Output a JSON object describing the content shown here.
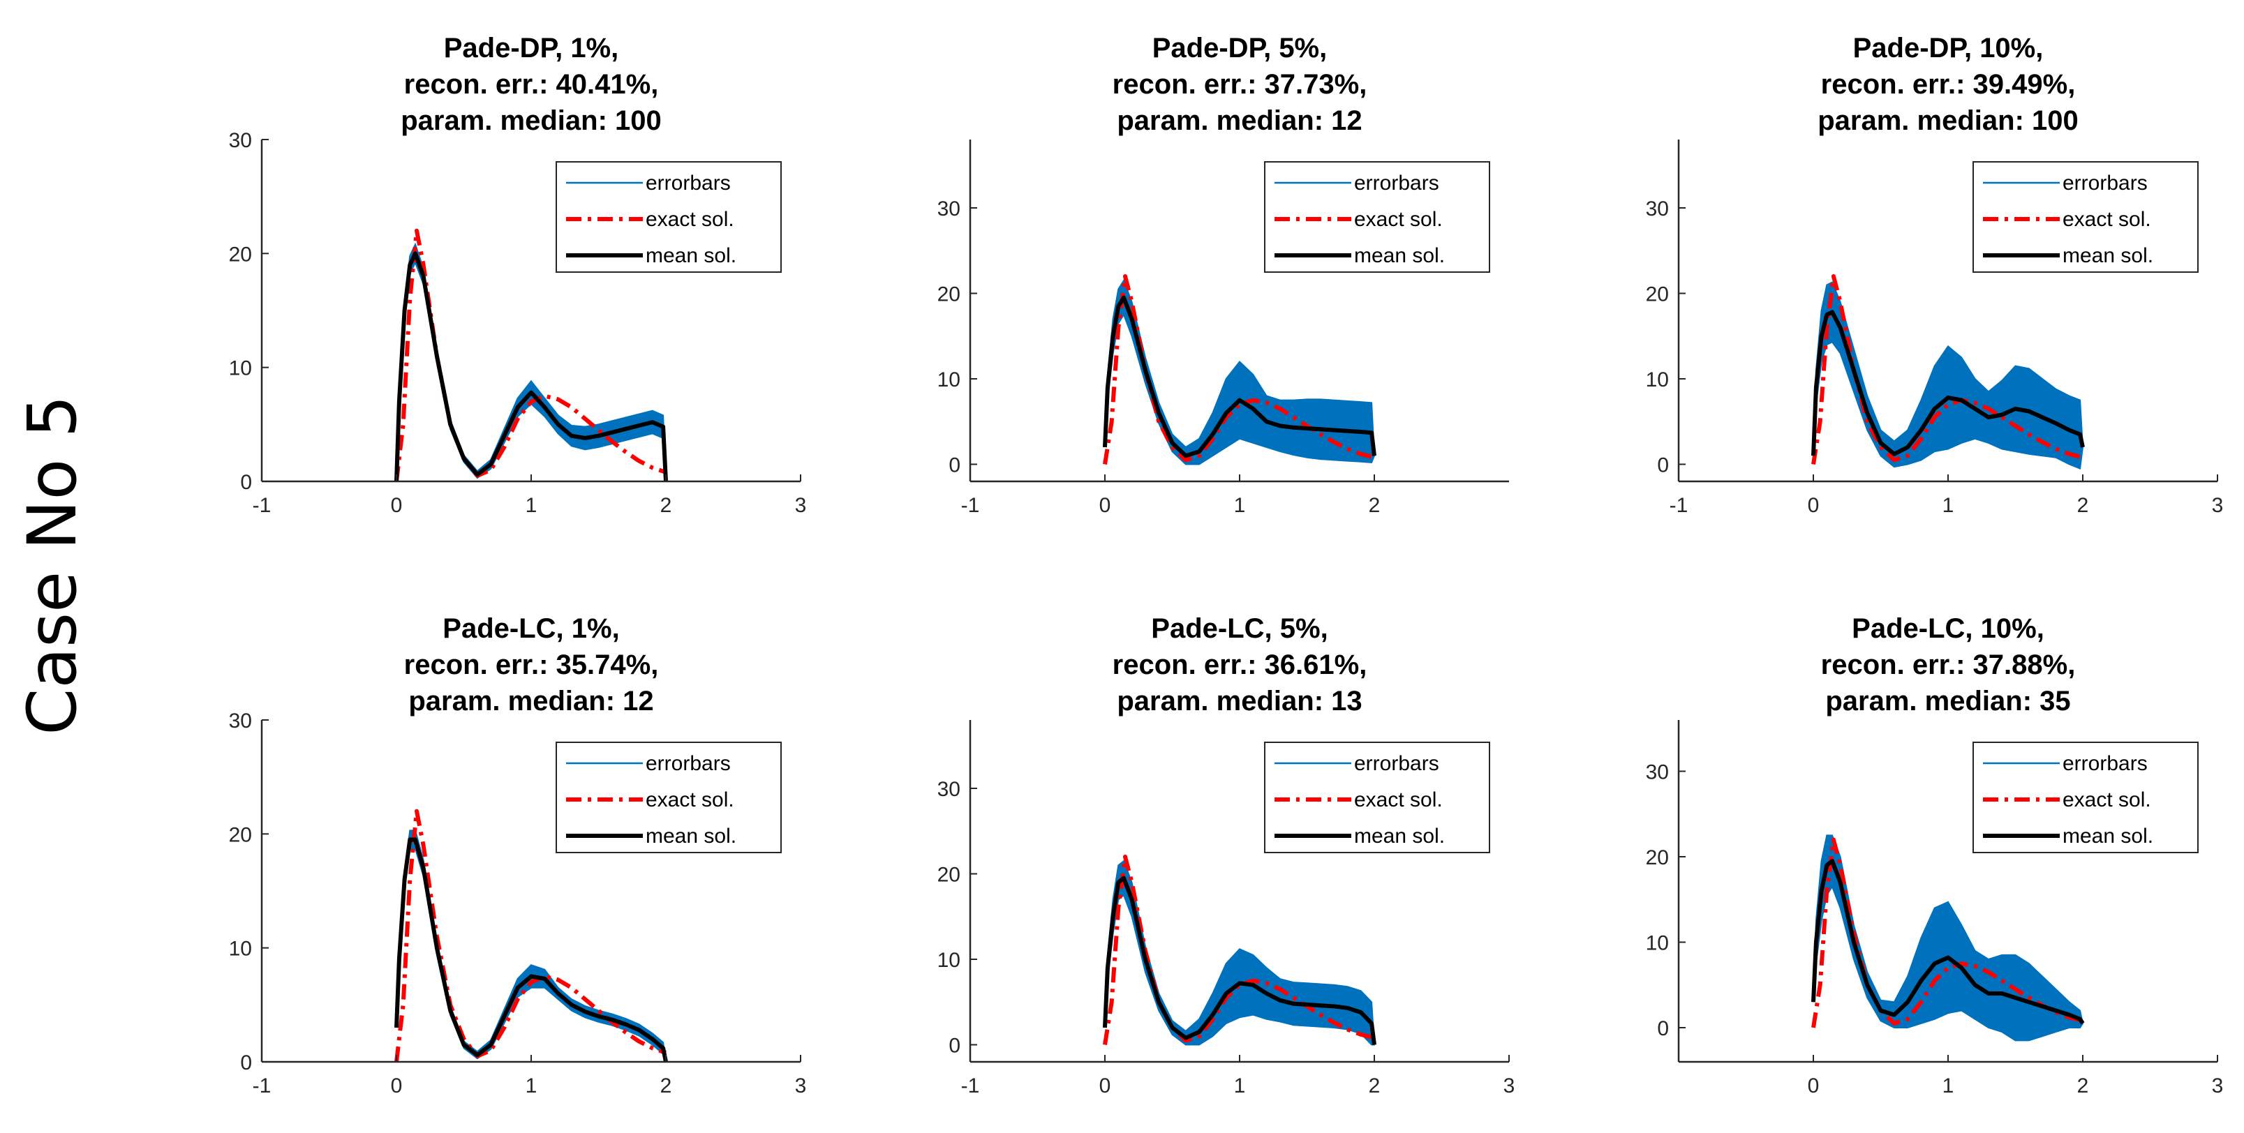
{
  "figure_label": "Case No 5",
  "colors": {
    "errorbars": "#0072bd",
    "exact": "#ff0000",
    "mean": "#000000",
    "axis": "#262626"
  },
  "chart_data": [
    {
      "type": "line",
      "title": [
        "Pade-DP, 1%,",
        "recon. err.: 40.41%,",
        "param. median: 100"
      ],
      "xlim": [
        -1,
        3
      ],
      "ylim": [
        0,
        30
      ],
      "xticks": [
        -1,
        0,
        1,
        2,
        3
      ],
      "yticks": [
        0,
        10,
        20,
        30
      ],
      "legend": {
        "position": "top-right",
        "entries": [
          "errorbars",
          "exact sol.",
          "mean sol."
        ]
      },
      "series": {
        "mean": {
          "x": [
            0,
            0.02,
            0.06,
            0.1,
            0.14,
            0.2,
            0.3,
            0.4,
            0.5,
            0.6,
            0.7,
            0.8,
            0.9,
            1.0,
            1.1,
            1.2,
            1.3,
            1.4,
            1.5,
            1.6,
            1.7,
            1.8,
            1.9,
            1.98,
            2.0
          ],
          "y": [
            0,
            7,
            15,
            19,
            20,
            18,
            11,
            5,
            2,
            0.6,
            1.5,
            4,
            6.5,
            7.8,
            6.5,
            5.0,
            4.0,
            3.8,
            4.0,
            4.3,
            4.6,
            4.9,
            5.2,
            4.8,
            0
          ]
        },
        "error_half_width": [
          0,
          0.6,
          0.8,
          0.8,
          0.8,
          0.7,
          0.6,
          0.4,
          0.3,
          0.3,
          0.4,
          0.6,
          0.8,
          1.0,
          0.8,
          0.8,
          0.9,
          1.0,
          1.0,
          1.0,
          1.0,
          1.0,
          1.0,
          1.0,
          0
        ],
        "exact": {
          "x": [
            0,
            0.05,
            0.1,
            0.15,
            0.2,
            0.3,
            0.4,
            0.5,
            0.6,
            0.7,
            0.8,
            0.9,
            1.0,
            1.1,
            1.2,
            1.3,
            1.4,
            1.5,
            1.6,
            1.7,
            1.8,
            1.9,
            2.0
          ],
          "y": [
            0,
            5,
            16,
            22,
            19,
            11,
            5,
            2,
            0.5,
            1.0,
            3.0,
            5.5,
            7.0,
            7.5,
            7.2,
            6.5,
            5.5,
            4.5,
            3.5,
            2.6,
            1.8,
            1.2,
            0.8
          ]
        }
      }
    },
    {
      "type": "line",
      "title": [
        "Pade-DP, 5%,",
        "recon. err.: 37.73%,",
        "param. median: 12"
      ],
      "xlim": [
        -1,
        3
      ],
      "ylim": [
        -2,
        38
      ],
      "xticks": [
        -1,
        0,
        1,
        2
      ],
      "yticks": [
        0,
        10,
        20,
        30
      ],
      "legend": {
        "position": "top-right",
        "entries": [
          "errorbars",
          "exact sol.",
          "mean sol."
        ]
      },
      "series": {
        "mean": {
          "x": [
            0,
            0.02,
            0.06,
            0.1,
            0.14,
            0.2,
            0.3,
            0.4,
            0.5,
            0.6,
            0.7,
            0.8,
            0.9,
            1.0,
            1.1,
            1.2,
            1.3,
            1.4,
            1.5,
            1.6,
            1.7,
            1.8,
            1.9,
            1.98,
            2.0
          ],
          "y": [
            2,
            9,
            15,
            18.5,
            19.5,
            17,
            11,
            6,
            2.5,
            1.0,
            1.5,
            3.5,
            6.0,
            7.5,
            6.5,
            5.0,
            4.5,
            4.3,
            4.2,
            4.1,
            4.0,
            3.9,
            3.8,
            3.7,
            1
          ]
        },
        "error_half_width": [
          0,
          1.5,
          2.0,
          2.0,
          2.0,
          2.0,
          1.5,
          1.2,
          1.0,
          1.0,
          1.5,
          2.5,
          4.0,
          4.5,
          4.0,
          3.0,
          3.0,
          3.2,
          3.4,
          3.5,
          3.5,
          3.5,
          3.5,
          3.5,
          0
        ],
        "exact": {
          "x": [
            0,
            0.05,
            0.1,
            0.15,
            0.2,
            0.3,
            0.4,
            0.5,
            0.6,
            0.7,
            0.8,
            0.9,
            1.0,
            1.1,
            1.2,
            1.3,
            1.4,
            1.5,
            1.6,
            1.7,
            1.8,
            1.9,
            2.0
          ],
          "y": [
            0,
            5,
            16,
            22,
            19,
            11,
            5,
            2,
            0.5,
            1.0,
            3.0,
            5.5,
            7.0,
            7.5,
            7.2,
            6.5,
            5.5,
            4.5,
            3.5,
            2.6,
            1.8,
            1.2,
            0.8
          ]
        }
      }
    },
    {
      "type": "line",
      "title": [
        "Pade-DP, 10%,",
        "recon. err.: 39.49%,",
        "param. median: 100"
      ],
      "xlim": [
        -1,
        3
      ],
      "ylim": [
        -2,
        38
      ],
      "xticks": [
        -1,
        0,
        1,
        2,
        3
      ],
      "yticks": [
        0,
        10,
        20,
        30
      ],
      "legend": {
        "position": "top-right",
        "entries": [
          "errorbars",
          "exact sol.",
          "mean sol."
        ]
      },
      "series": {
        "mean": {
          "x": [
            0,
            0.02,
            0.06,
            0.1,
            0.14,
            0.2,
            0.3,
            0.4,
            0.5,
            0.6,
            0.7,
            0.8,
            0.9,
            1.0,
            1.1,
            1.2,
            1.3,
            1.4,
            1.5,
            1.6,
            1.7,
            1.8,
            1.9,
            1.98,
            2.0
          ],
          "y": [
            1,
            9,
            15,
            17.5,
            17.8,
            16,
            11,
            6,
            2.5,
            1.2,
            2.0,
            4.0,
            6.5,
            7.8,
            7.5,
            6.5,
            5.5,
            5.8,
            6.5,
            6.2,
            5.5,
            4.8,
            4.0,
            3.5,
            2
          ]
        },
        "error_half_width": [
          0,
          2.0,
          3.0,
          3.5,
          3.5,
          3.0,
          2.5,
          2.0,
          1.5,
          1.5,
          2.0,
          3.5,
          5.0,
          6.0,
          5.0,
          3.5,
          3.0,
          4.0,
          5.0,
          5.0,
          4.5,
          4.0,
          4.0,
          4.0,
          0
        ],
        "exact": {
          "x": [
            0,
            0.05,
            0.1,
            0.15,
            0.2,
            0.3,
            0.4,
            0.5,
            0.6,
            0.7,
            0.8,
            0.9,
            1.0,
            1.1,
            1.2,
            1.3,
            1.4,
            1.5,
            1.6,
            1.7,
            1.8,
            1.9,
            2.0
          ],
          "y": [
            0,
            5,
            16,
            22,
            19,
            11,
            5,
            2,
            0.5,
            1.0,
            3.0,
            5.5,
            7.0,
            7.5,
            7.2,
            6.5,
            5.5,
            4.5,
            3.5,
            2.6,
            1.8,
            1.2,
            0.8
          ]
        }
      }
    },
    {
      "type": "line",
      "title": [
        "Pade-LC, 1%,",
        "recon. err.: 35.74%,",
        "param. median: 12"
      ],
      "xlim": [
        -1,
        3
      ],
      "ylim": [
        0,
        30
      ],
      "xticks": [
        -1,
        0,
        1,
        2,
        3
      ],
      "yticks": [
        0,
        10,
        20,
        30
      ],
      "legend": {
        "position": "top-right",
        "entries": [
          "errorbars",
          "exact sol.",
          "mean sol."
        ]
      },
      "series": {
        "mean": {
          "x": [
            0,
            0.02,
            0.06,
            0.1,
            0.14,
            0.2,
            0.3,
            0.4,
            0.5,
            0.6,
            0.7,
            0.8,
            0.9,
            1.0,
            1.1,
            1.2,
            1.3,
            1.4,
            1.5,
            1.6,
            1.7,
            1.8,
            1.9,
            1.98,
            2.0
          ],
          "y": [
            3,
            9,
            16,
            19.5,
            19.5,
            17,
            10,
            4.5,
            1.5,
            0.6,
            1.5,
            4.0,
            6.5,
            7.5,
            7.3,
            6.0,
            5.0,
            4.4,
            4.0,
            3.7,
            3.3,
            2.8,
            2.0,
            1.2,
            0
          ]
        },
        "error_half_width": [
          0,
          0.6,
          0.8,
          0.8,
          0.8,
          0.7,
          0.6,
          0.4,
          0.3,
          0.3,
          0.4,
          0.6,
          0.8,
          1.0,
          0.8,
          0.5,
          0.5,
          0.5,
          0.5,
          0.5,
          0.5,
          0.5,
          0.5,
          0.5,
          0
        ],
        "exact": {
          "x": [
            0,
            0.05,
            0.1,
            0.15,
            0.2,
            0.3,
            0.4,
            0.5,
            0.6,
            0.7,
            0.8,
            0.9,
            1.0,
            1.1,
            1.2,
            1.3,
            1.4,
            1.5,
            1.6,
            1.7,
            1.8,
            1.9,
            2.0
          ],
          "y": [
            0,
            5,
            16,
            22,
            19,
            11,
            5,
            2,
            0.5,
            1.0,
            3.0,
            5.5,
            7.0,
            7.5,
            7.2,
            6.5,
            5.5,
            4.5,
            3.5,
            2.6,
            1.8,
            1.2,
            0.8
          ]
        }
      }
    },
    {
      "type": "line",
      "title": [
        "Pade-LC, 5%,",
        "recon. err.: 36.61%,",
        "param. median: 13"
      ],
      "xlim": [
        -1,
        3
      ],
      "ylim": [
        -2,
        38
      ],
      "xticks": [
        -1,
        0,
        1,
        2,
        3
      ],
      "yticks": [
        0,
        10,
        20,
        30
      ],
      "legend": {
        "position": "top-right",
        "entries": [
          "errorbars",
          "exact sol.",
          "mean sol."
        ]
      },
      "series": {
        "mean": {
          "x": [
            0,
            0.02,
            0.06,
            0.1,
            0.14,
            0.2,
            0.3,
            0.4,
            0.5,
            0.6,
            0.7,
            0.8,
            0.9,
            1.0,
            1.1,
            1.2,
            1.3,
            1.4,
            1.5,
            1.6,
            1.7,
            1.8,
            1.9,
            1.98,
            2.0
          ],
          "y": [
            2,
            9,
            15,
            19,
            19.5,
            17,
            10,
            5,
            2,
            0.8,
            1.5,
            3.5,
            6.0,
            7.2,
            7.0,
            6.0,
            5.2,
            4.8,
            4.7,
            4.6,
            4.5,
            4.3,
            3.8,
            2.5,
            0
          ]
        },
        "error_half_width": [
          0,
          1.5,
          2.0,
          2.0,
          2.0,
          2.0,
          1.5,
          1.0,
          0.8,
          0.8,
          1.5,
          2.5,
          3.5,
          4.0,
          3.5,
          3.0,
          2.5,
          2.5,
          2.5,
          2.5,
          2.5,
          2.5,
          2.5,
          2.5,
          0
        ],
        "exact": {
          "x": [
            0,
            0.05,
            0.1,
            0.15,
            0.2,
            0.3,
            0.4,
            0.5,
            0.6,
            0.7,
            0.8,
            0.9,
            1.0,
            1.1,
            1.2,
            1.3,
            1.4,
            1.5,
            1.6,
            1.7,
            1.8,
            1.9,
            2.0
          ],
          "y": [
            0,
            5,
            16,
            22,
            19,
            11,
            5,
            2,
            0.5,
            1.0,
            3.0,
            5.5,
            7.0,
            7.5,
            7.2,
            6.5,
            5.5,
            4.5,
            3.5,
            2.6,
            1.8,
            1.2,
            0.8
          ]
        }
      }
    },
    {
      "type": "line",
      "title": [
        "Pade-LC, 10%,",
        "recon. err.: 37.88%,",
        "param. median: 35"
      ],
      "xlim": [
        -1,
        3
      ],
      "ylim": [
        -4,
        36
      ],
      "xticks": [
        0,
        1,
        2,
        3
      ],
      "yticks": [
        0,
        10,
        20,
        30
      ],
      "legend": {
        "position": "top-right",
        "entries": [
          "errorbars",
          "exact sol.",
          "mean sol."
        ]
      },
      "series": {
        "mean": {
          "x": [
            0,
            0.02,
            0.06,
            0.1,
            0.14,
            0.2,
            0.3,
            0.4,
            0.5,
            0.6,
            0.7,
            0.8,
            0.9,
            1.0,
            1.1,
            1.2,
            1.3,
            1.4,
            1.5,
            1.6,
            1.7,
            1.8,
            1.9,
            1.98,
            2.0
          ],
          "y": [
            3,
            10,
            16,
            19,
            19.5,
            17,
            10,
            5,
            2,
            1.5,
            3.0,
            5.5,
            7.5,
            8.2,
            7.0,
            5.0,
            4.0,
            4.0,
            3.5,
            3.0,
            2.5,
            2.0,
            1.5,
            1.0,
            0.5
          ]
        },
        "error_half_width": [
          0,
          2.5,
          3.5,
          3.5,
          3.0,
          3.0,
          2.0,
          1.5,
          1.2,
          1.5,
          3.0,
          5.0,
          6.5,
          6.5,
          5.0,
          4.0,
          4.0,
          4.5,
          5.0,
          4.5,
          3.5,
          2.5,
          1.5,
          1.0,
          0
        ],
        "exact": {
          "x": [
            0,
            0.05,
            0.1,
            0.15,
            0.2,
            0.3,
            0.4,
            0.5,
            0.6,
            0.7,
            0.8,
            0.9,
            1.0,
            1.1,
            1.2,
            1.3,
            1.4,
            1.5,
            1.6,
            1.7,
            1.8,
            1.9,
            2.0
          ],
          "y": [
            0,
            5,
            16,
            22,
            19,
            11,
            5,
            2,
            0.5,
            1.0,
            3.0,
            5.5,
            7.0,
            7.5,
            7.2,
            6.5,
            5.5,
            4.5,
            3.5,
            2.6,
            1.8,
            1.2,
            0.8
          ]
        }
      }
    }
  ]
}
